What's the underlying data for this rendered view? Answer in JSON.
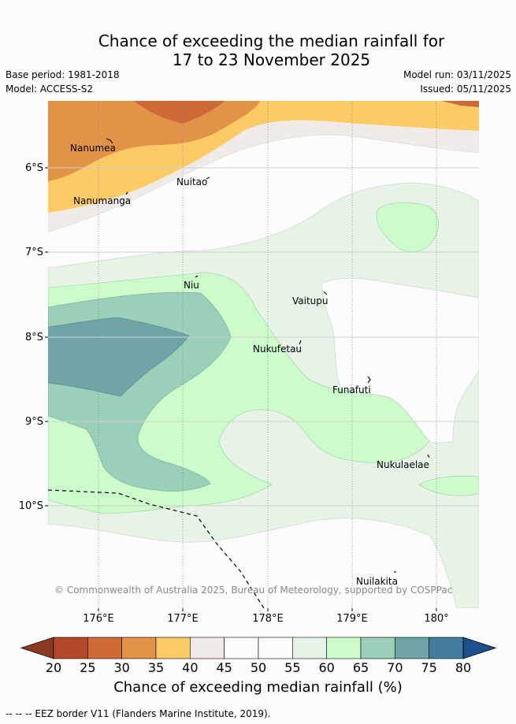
{
  "title": {
    "line1": "Chance of exceeding the median rainfall for",
    "line2": "17 to 23 November 2025"
  },
  "meta": {
    "base_period": "Base period: 1981-2018",
    "model": "Model: ACCESS-S2",
    "model_run": "Model run: 03/11/2025",
    "issued": "Issued: 05/11/2025"
  },
  "map": {
    "lat_labels": [
      "6°S",
      "7°S",
      "8°S",
      "9°S",
      "10°S"
    ],
    "lon_labels": [
      "176°E",
      "177°E",
      "178°E",
      "179°E",
      "180°"
    ],
    "islands": [
      "Nanumea",
      "Nuitao",
      "Nanumanga",
      "Niu",
      "Vaitupu",
      "Nukufetau",
      "Funafuti",
      "Nukulaelae",
      "Nuilakita"
    ],
    "copyright": "© Commonwealth of Australia 2025, Bureau of Meteorology, supported by COSPPac"
  },
  "colorbar": {
    "ticks": [
      "20",
      "25",
      "30",
      "35",
      "40",
      "45",
      "50",
      "55",
      "60",
      "65",
      "70",
      "75",
      "80"
    ],
    "colors": [
      "#8b3a22",
      "#b5482a",
      "#cd6a37",
      "#e29348",
      "#fdcb66",
      "#f0ebe6",
      "#fbfcfb",
      "#fbfcfb",
      "#e8f3e8",
      "#ccfccc",
      "#9ccfb7",
      "#6fa5a6",
      "#447c9c",
      "#1d4f8c"
    ],
    "label": "Chance of exceeding median rainfall (%)"
  },
  "footer": {
    "eez_note": "-- -- -- EEZ border V11 (Flanders Marine Institute, 2019)."
  }
}
